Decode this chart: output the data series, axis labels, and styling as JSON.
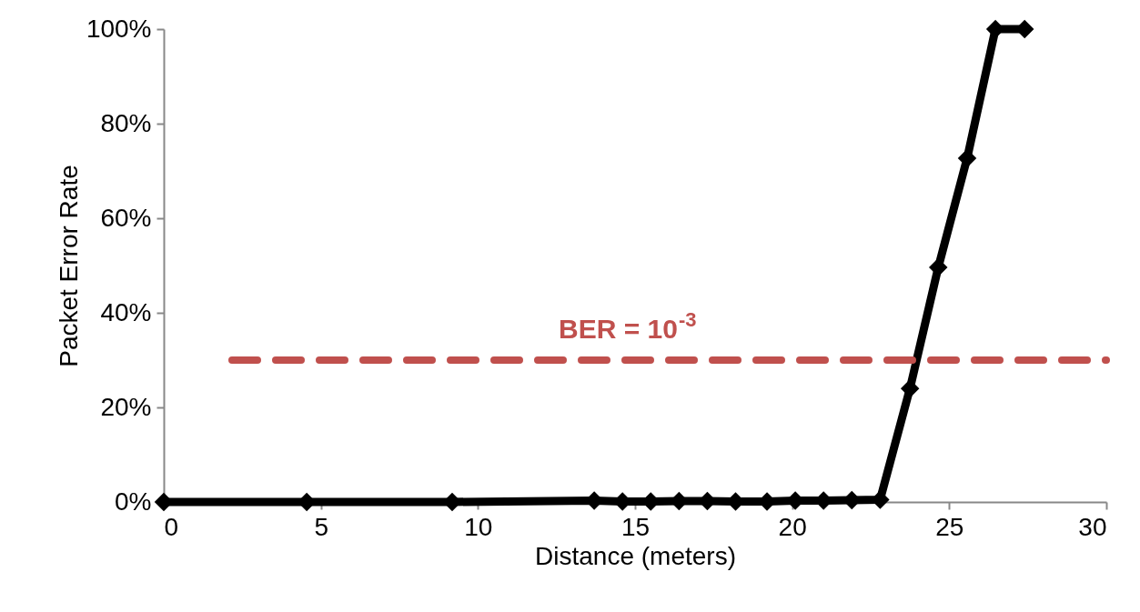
{
  "chart_data": {
    "type": "line",
    "xlabel": "Distance (meters)",
    "ylabel": "Packet Error Rate",
    "x": [
      0,
      4.55,
      9.18,
      13.7,
      14.6,
      15.5,
      16.4,
      17.3,
      18.2,
      19.2,
      20.1,
      21.0,
      21.9,
      22.8,
      23.75,
      24.65,
      25.57,
      26.47,
      27.4
    ],
    "series": [
      {
        "color": "#000000",
        "values": [
          0,
          0,
          0,
          0.3,
          0.1,
          0.1,
          0.2,
          0.2,
          0.1,
          0.1,
          0.3,
          0.3,
          0.4,
          0.5,
          24,
          49.6,
          72.7,
          100,
          100
        ]
      }
    ],
    "marker": "diamond",
    "line_style": "solid",
    "xlim": [
      0,
      30
    ],
    "xticks": [
      0,
      5,
      10,
      15,
      20,
      25,
      30
    ],
    "ylim": [
      0,
      100
    ],
    "yticks": [
      {
        "value": 0,
        "label": "0%"
      },
      {
        "value": 20,
        "label": "20%"
      },
      {
        "value": 40,
        "label": "40%"
      },
      {
        "value": 60,
        "label": "60%"
      },
      {
        "value": 80,
        "label": "80%"
      },
      {
        "value": 100,
        "label": "100%"
      }
    ],
    "ref_lines": [
      {
        "axis": "y",
        "value": 30,
        "color": "#c0504d",
        "line_style": "dashed"
      }
    ],
    "annotations": [
      "BER = 10$^{-3}$"
    ],
    "grid": false
  }
}
